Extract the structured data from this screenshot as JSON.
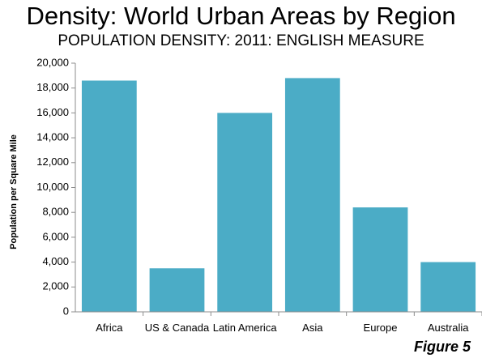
{
  "chart_data": {
    "type": "bar",
    "title": "Density: World Urban Areas by Region",
    "subtitle": "POPULATION DENSITY: 2011: ENGLISH MEASURE",
    "ylabel": "Population per Square Mile",
    "xlabel": "",
    "categories": [
      "Africa",
      "US & Canada",
      "Latin America",
      "Asia",
      "Europe",
      "Australia"
    ],
    "values": [
      18600,
      3500,
      16000,
      18800,
      8400,
      4000
    ],
    "ylim": [
      0,
      20000
    ],
    "yticks": [
      0,
      2000,
      4000,
      6000,
      8000,
      10000,
      12000,
      14000,
      16000,
      18000,
      20000
    ],
    "ytick_labels": [
      "0",
      "2,000",
      "4,000",
      "6,000",
      "8,000",
      "10,000",
      "12,000",
      "14,000",
      "16,000",
      "18,000",
      "20,000"
    ],
    "grid": false,
    "legend": "none",
    "bar_color": "#4bacc6"
  },
  "figure_label": "Figure 5"
}
